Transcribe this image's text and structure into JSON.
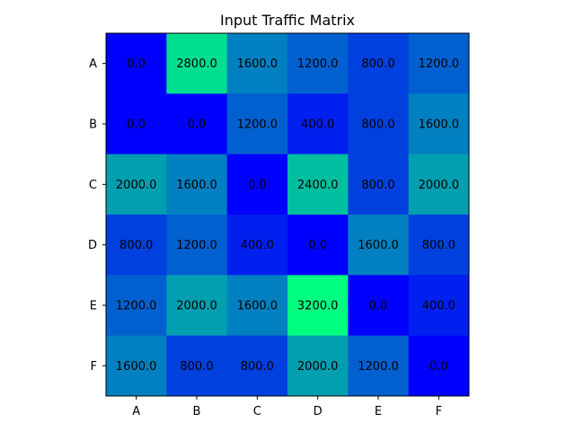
{
  "chart_data": {
    "type": "heatmap",
    "title": "Input Traffic Matrix",
    "xlabel": "",
    "ylabel": "",
    "x_categories": [
      "A",
      "B",
      "C",
      "D",
      "E",
      "F"
    ],
    "y_categories": [
      "A",
      "B",
      "C",
      "D",
      "E",
      "F"
    ],
    "values": [
      [
        0,
        2800,
        1600,
        1200,
        800,
        1200
      ],
      [
        0,
        0,
        1200,
        400,
        800,
        1600
      ],
      [
        2000,
        1600,
        0,
        2400,
        800,
        2000
      ],
      [
        800,
        1200,
        400,
        0,
        1600,
        800
      ],
      [
        1200,
        2000,
        1600,
        3200,
        0,
        400
      ],
      [
        1600,
        800,
        800,
        2000,
        1200,
        0
      ]
    ],
    "value_range": [
      0,
      3200
    ],
    "colormap": "winter",
    "colormap_colors": [
      "#0000ff",
      "#00ff80"
    ],
    "value_format_decimals": 1,
    "grid": false,
    "legend": "none"
  }
}
